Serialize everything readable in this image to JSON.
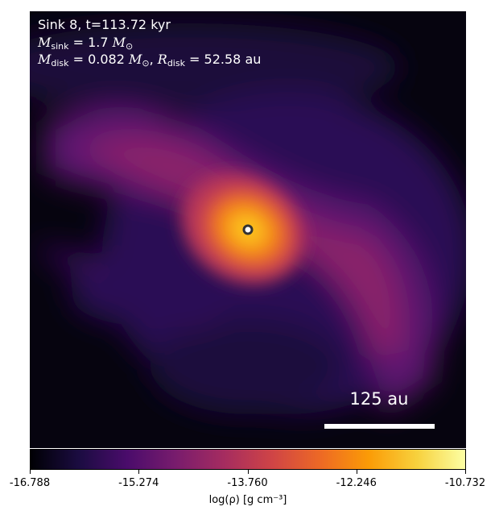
{
  "annotations": {
    "line1": "Sink 8, t=113.72 kyr",
    "m_sink_symbol": "M",
    "m_sink_sub": "sink",
    "m_sink_value": " = 1.7 ",
    "msun_symbol": "M",
    "msun_sub": "⊙",
    "m_disk_symbol": "M",
    "m_disk_sub": "disk",
    "m_disk_value": " = 0.082 ",
    "r_disk_symbol": "R",
    "r_disk_sub": "disk",
    "r_disk_value": " = 52.58 au",
    "comma": ", "
  },
  "scalebar": {
    "label": "125 au"
  },
  "chart_data": {
    "type": "heatmap",
    "colormap": "inferno",
    "colorbar": {
      "label": "log(ρ) [g cm⁻³]",
      "range": [
        -16.788,
        -10.732
      ],
      "ticks": [
        "-16.788",
        "-15.274",
        "-13.760",
        "-12.246",
        "-10.732"
      ],
      "orientation": "horizontal",
      "placement": "bottom"
    },
    "sink_marker": {
      "shape": "circle",
      "color": "#ffffff",
      "edge": "#333333"
    }
  }
}
